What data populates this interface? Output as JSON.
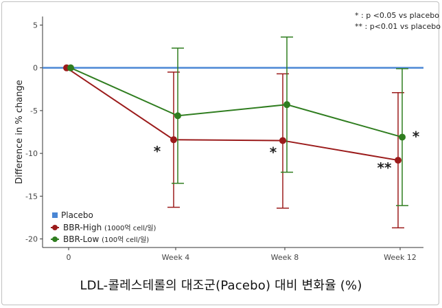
{
  "chart_data": {
    "type": "line",
    "title": "",
    "xlabel": "",
    "ylabel": "Difference in % change",
    "categories": [
      "0",
      "Week 4",
      "Week 8",
      "Week 12"
    ],
    "ylim": [
      -21,
      6
    ],
    "yticks": [
      5,
      0,
      -5,
      -10,
      -15,
      -20
    ],
    "ytick_labels": [
      "5",
      "0",
      "-5",
      "-10",
      "-15",
      "-20"
    ],
    "grid": false,
    "legend_position": "bottom-left",
    "series": [
      {
        "name": "Placebo",
        "color": "#4a86d4",
        "values": [
          0,
          0,
          0,
          0
        ]
      },
      {
        "name": "BBR-High",
        "name_note": "(1000억 cell/일)",
        "color": "#9b1b1b",
        "values": [
          0,
          -8.4,
          -8.5,
          -10.8
        ],
        "error_low": [
          0,
          -16.3,
          -16.4,
          -18.7
        ],
        "error_high": [
          0,
          -0.5,
          -0.7,
          -2.9
        ]
      },
      {
        "name": "BBR-Low",
        "name_note": "(100억 cell/일)",
        "color": "#2f7d1f",
        "values": [
          0,
          -5.6,
          -4.3,
          -8.1
        ],
        "error_low": [
          0,
          -13.5,
          -12.2,
          -16.1
        ],
        "error_high": [
          0,
          2.3,
          3.6,
          -0.1
        ]
      }
    ],
    "significance_notes": [
      "* : p <0.05 vs placebo",
      "** : p<0.01 vs placebo"
    ],
    "annotations": [
      {
        "text": "*",
        "category": 1,
        "series": "BBR-High"
      },
      {
        "text": "*",
        "category": 2,
        "series": "BBR-High"
      },
      {
        "text": "**",
        "category": 3,
        "series": "BBR-High"
      },
      {
        "text": "*",
        "category": 3,
        "series": "BBR-Low"
      }
    ]
  },
  "caption": "LDL-콜레스테롤의 대조군(Pacebo) 대비 변화율 (%)"
}
